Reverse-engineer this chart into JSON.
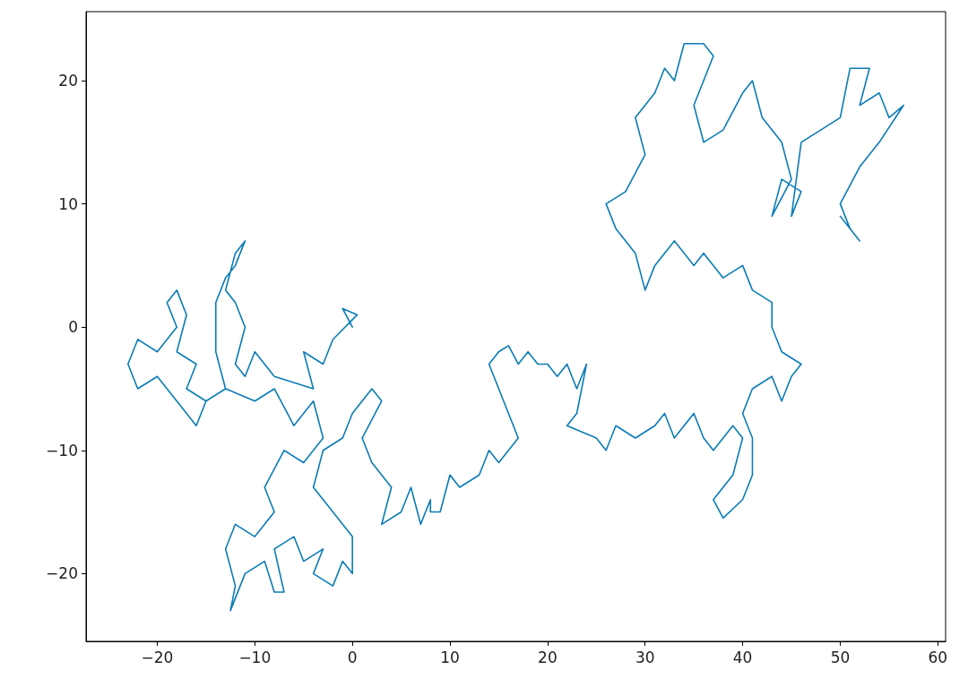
{
  "chart_data": {
    "type": "line",
    "xlim": [
      -27.3,
      60.8
    ],
    "ylim": [
      -25.5,
      25.6
    ],
    "xticks": [
      -20,
      -10,
      0,
      10,
      20,
      30,
      40,
      50,
      60
    ],
    "yticks": [
      -20,
      -10,
      0,
      10,
      20
    ],
    "grid": false,
    "marker": "none",
    "line_style": "solid",
    "series": [
      {
        "color": "#0a7bb5",
        "x": [
          0,
          -1,
          0.5,
          -2,
          -3,
          -5,
          -4,
          -8,
          -10,
          -11,
          -12,
          -11,
          -12,
          -13,
          -12,
          -11,
          -12,
          -13,
          -14,
          -14,
          -13,
          -15,
          -17,
          -16,
          -18,
          -17,
          -18,
          -19,
          -18,
          -20,
          -22,
          -23,
          -22,
          -20,
          -18,
          -16,
          -15,
          -13,
          -10,
          -8,
          -6,
          -4,
          -3,
          -5,
          -7,
          -9,
          -8,
          -10,
          -12,
          -13,
          -12,
          -12.5,
          -11,
          -9,
          -8,
          -7,
          -8,
          -6,
          -5,
          -3,
          -4,
          -2,
          -1,
          0,
          0,
          -2,
          -4,
          -3,
          -1,
          0,
          2,
          3,
          1,
          2,
          4,
          3,
          5,
          6,
          7,
          8,
          8,
          9,
          10,
          11,
          13,
          14,
          15,
          17,
          16,
          15,
          14,
          15,
          16,
          17,
          18,
          19,
          20,
          21,
          22,
          23,
          24,
          23,
          22,
          25,
          26,
          27,
          29,
          31,
          32,
          33,
          35,
          36,
          37,
          39,
          40,
          39,
          37,
          38,
          40,
          41,
          41,
          40,
          41,
          43,
          44,
          45,
          46,
          44,
          43,
          43,
          41,
          40,
          38,
          36,
          35,
          33,
          31,
          30,
          29,
          27,
          26,
          28,
          30,
          29,
          31,
          32,
          33,
          34,
          36,
          37,
          35,
          36,
          38,
          40,
          41,
          42,
          44,
          45,
          43,
          44,
          46,
          45,
          46,
          48,
          50,
          51,
          53,
          52,
          54,
          55,
          56.5,
          54,
          52,
          50,
          51,
          52,
          50
        ],
        "values": [
          0,
          1.5,
          1,
          -1,
          -3,
          -2,
          -5,
          -4,
          -2,
          -4,
          -3,
          0,
          2,
          3,
          6,
          7,
          5,
          4,
          2,
          -2,
          -5,
          -6,
          -5,
          -3,
          -2,
          1,
          3,
          2,
          0,
          -2,
          -1,
          -3,
          -5,
          -4,
          -6,
          -8,
          -6,
          -5,
          -6,
          -5,
          -8,
          -6,
          -9,
          -11,
          -10,
          -13,
          -15,
          -17,
          -16,
          -18,
          -21,
          -23,
          -20,
          -19,
          -21.5,
          -21.5,
          -18,
          -17,
          -19,
          -18,
          -20,
          -21,
          -19,
          -20,
          -17,
          -15,
          -13,
          -10,
          -9,
          -7,
          -5,
          -6,
          -9,
          -11,
          -13,
          -16,
          -15,
          -13,
          -16,
          -14,
          -15,
          -15,
          -12,
          -13,
          -12,
          -10,
          -11,
          -9,
          -7,
          -5,
          -3,
          -2,
          -1.5,
          -3,
          -2,
          -3,
          -3,
          -4,
          -3,
          -5,
          -3,
          -7,
          -8,
          -9,
          -10,
          -8,
          -9,
          -8,
          -7,
          -9,
          -7,
          -9,
          -10,
          -8,
          -9,
          -12,
          -14,
          -15.5,
          -14,
          -12,
          -9,
          -7,
          -5,
          -4,
          -6,
          -4,
          -3,
          -2,
          0,
          2,
          3,
          5,
          4,
          6,
          5,
          7,
          5,
          3,
          6,
          8,
          10,
          11,
          14,
          17,
          19,
          21,
          20,
          23,
          23,
          22,
          18,
          15,
          16,
          19,
          20,
          17,
          15,
          12,
          9,
          12,
          11,
          9,
          15,
          16,
          17,
          21,
          21,
          18,
          19,
          17,
          18,
          15,
          13,
          10,
          8,
          7,
          9
        ]
      }
    ]
  }
}
